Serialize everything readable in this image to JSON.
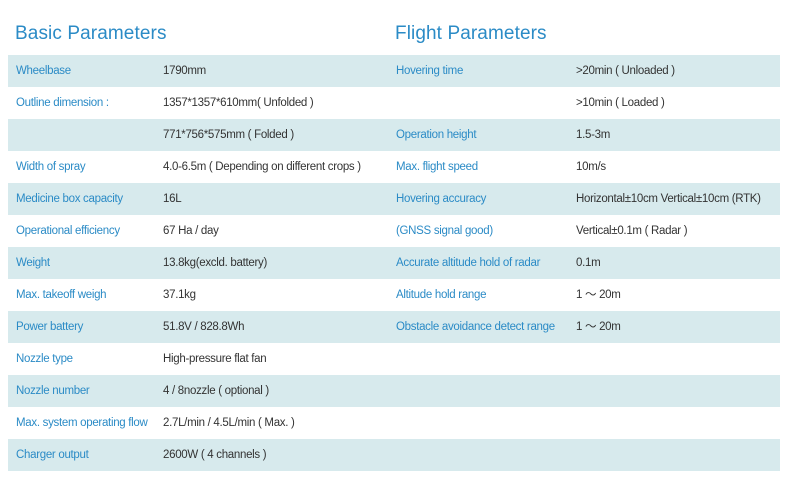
{
  "basic": {
    "title": "Basic Parameters",
    "rows": [
      {
        "label": "Wheelbase",
        "value": "1790mm"
      },
      {
        "label": "Outline dimension :",
        "value": "1357*1357*610mm( Unfolded )"
      },
      {
        "label": "",
        "value": "771*756*575mm ( Folded )"
      },
      {
        "label": "Width of spray",
        "value": "4.0-6.5m ( Depending on different crops )"
      },
      {
        "label": "Medicine box capacity",
        "value": "16L"
      },
      {
        "label": "Operational efficiency",
        "value": "67 Ha / day"
      },
      {
        "label": "Weight",
        "value": "13.8kg(excld. battery)"
      },
      {
        "label": "Max. takeoff weigh",
        "value": "37.1kg"
      },
      {
        "label": "Power battery",
        "value": "51.8V / 828.8Wh"
      },
      {
        "label": "Nozzle type",
        "value": "High-pressure flat fan"
      },
      {
        "label": "Nozzle number",
        "value": "4 / 8nozzle ( optional )"
      },
      {
        "label": "Max. system operating flow",
        "value": "2.7L/min / 4.5L/min ( Max. )"
      },
      {
        "label": "Charger output",
        "value": "2600W ( 4 channels )"
      }
    ]
  },
  "flight": {
    "title": "Flight Parameters",
    "rows": [
      {
        "label": "Hovering time",
        "value": ">20min ( Unloaded )"
      },
      {
        "label": "",
        "value": ">10min ( Loaded )"
      },
      {
        "label": "Operation height",
        "value": "1.5-3m"
      },
      {
        "label": "Max. flight speed",
        "value": "10m/s"
      },
      {
        "label": "Hovering accuracy",
        "value": "Horizontal±10cm Vertical±10cm (RTK)"
      },
      {
        "label": "(GNSS signal good)",
        "value": "Vertical±0.1m ( Radar )"
      },
      {
        "label": "Accurate altitude hold of radar",
        "value": "0.1m"
      },
      {
        "label": "Altitude hold range",
        "value": "1 ～ 20m"
      },
      {
        "label": "Obstacle avoidance detect range",
        "value": "1 ～ 20m"
      }
    ]
  },
  "colors": {
    "accent": "#2b8bc6",
    "stripe": "#d7eaed",
    "text": "#333333"
  }
}
